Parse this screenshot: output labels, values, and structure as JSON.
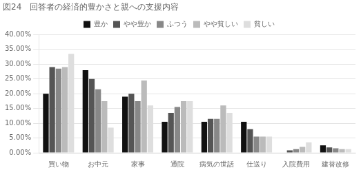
{
  "chart_data": {
    "type": "bar",
    "title": "図24　回答者の経済的豊かさと親への支援内容",
    "categories": [
      "買い物",
      "お中元",
      "家事",
      "通院",
      "病気の世話",
      "仕送り",
      "入院費用",
      "建替改修"
    ],
    "series": [
      {
        "name": "豊か",
        "color": "#111111",
        "values": [
          20.0,
          28.0,
          19.0,
          10.5,
          10.5,
          10.5,
          0.0,
          2.5
        ]
      },
      {
        "name": "やや豊か",
        "color": "#555555",
        "values": [
          29.0,
          25.0,
          20.0,
          13.5,
          11.5,
          8.0,
          0.8,
          1.8
        ]
      },
      {
        "name": "ふつう",
        "color": "#888888",
        "values": [
          28.5,
          21.5,
          17.5,
          15.5,
          11.5,
          5.5,
          1.2,
          1.5
        ]
      },
      {
        "name": "やや貧しい",
        "color": "#bbbbbb",
        "values": [
          29.0,
          17.5,
          24.5,
          17.5,
          16.0,
          5.5,
          2.0,
          1.2
        ]
      },
      {
        "name": "貧しい",
        "color": "#dedede",
        "values": [
          33.5,
          8.5,
          16.0,
          17.5,
          13.5,
          5.5,
          3.5,
          1.2
        ]
      }
    ],
    "ylim": [
      0,
      40
    ],
    "yticks": [
      {
        "value": 0,
        "label": "0.00%"
      },
      {
        "value": 5,
        "label": "5.00%"
      },
      {
        "value": 10,
        "label": "10.00%"
      },
      {
        "value": 15,
        "label": "15.00%"
      },
      {
        "value": 20,
        "label": "20.00%"
      },
      {
        "value": 25,
        "label": "25.00%"
      },
      {
        "value": 30,
        "label": "30.00%"
      },
      {
        "value": 35,
        "label": "35.00%"
      },
      {
        "value": 40,
        "label": "40.00%"
      }
    ],
    "grid": true,
    "legend": "top"
  }
}
